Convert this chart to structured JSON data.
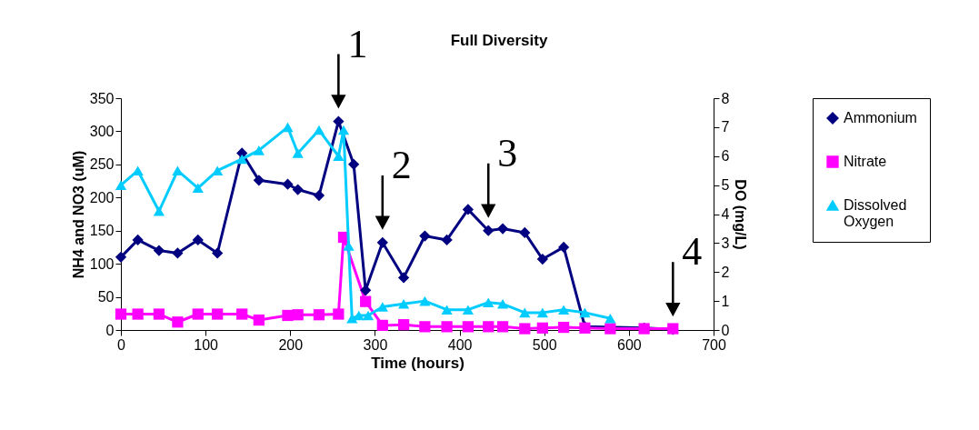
{
  "chart_data": {
    "type": "line",
    "title": "Full Diversity",
    "xlabel": "Time (hours)",
    "ylabel": "NH4 and NO3 (uM)",
    "y2label": "DO (mg/L)",
    "xlim": [
      0,
      700
    ],
    "xticks": [
      0,
      100,
      200,
      300,
      400,
      500,
      600,
      700
    ],
    "ylim": [
      0,
      350
    ],
    "yticks": [
      0,
      50,
      100,
      150,
      200,
      250,
      300,
      350
    ],
    "y2lim": [
      0,
      8
    ],
    "y2ticks": [
      0,
      1,
      2,
      3,
      4,
      5,
      6,
      7,
      8
    ],
    "grid": false,
    "legend": "right",
    "line_style": "solid",
    "series": [
      {
        "name": "Ammonium",
        "color": "#000080",
        "marker": "diamond",
        "x": [
          0,
          20,
          45,
          67,
          91,
          114,
          143,
          163,
          197,
          209,
          234,
          257,
          275,
          289,
          309,
          334,
          359,
          385,
          410,
          434,
          451,
          477,
          498,
          523,
          548,
          618,
          652
        ],
        "values": [
          110,
          136,
          120,
          116,
          136,
          116,
          267,
          226,
          220,
          212,
          203,
          315,
          250,
          60,
          132,
          79,
          142,
          136,
          182,
          150,
          153,
          147,
          107,
          125,
          5,
          3,
          1
        ]
      },
      {
        "name": "Nitrate",
        "color": "#ff00ff",
        "marker": "square",
        "x": [
          0,
          20,
          45,
          67,
          91,
          114,
          143,
          163,
          197,
          209,
          234,
          257,
          263,
          289,
          309,
          334,
          359,
          385,
          410,
          434,
          451,
          477,
          498,
          523,
          548,
          578,
          618,
          652
        ],
        "values": [
          24,
          24,
          24,
          12,
          24,
          24,
          24,
          15,
          22,
          23,
          23,
          24,
          140,
          43,
          7,
          8,
          5,
          5,
          5,
          5,
          5,
          2,
          3,
          4,
          3,
          2,
          2,
          2
        ]
      },
      {
        "name": "Dissolved Oxygen",
        "color": "#00ccff",
        "marker": "triangle",
        "axis": "y2",
        "x": [
          0,
          20,
          45,
          67,
          91,
          114,
          143,
          163,
          197,
          209,
          234,
          257,
          263,
          269,
          273,
          281,
          292,
          309,
          334,
          359,
          385,
          410,
          434,
          451,
          477,
          498,
          523,
          548,
          578
        ],
        "values": [
          5.0,
          5.5,
          4.1,
          5.5,
          4.9,
          5.5,
          5.9,
          6.2,
          7.0,
          6.1,
          6.9,
          6.0,
          6.9,
          2.9,
          0.4,
          0.5,
          0.5,
          0.8,
          0.9,
          1.0,
          0.7,
          0.7,
          0.95,
          0.9,
          0.6,
          0.6,
          0.7,
          0.6,
          0.4
        ]
      }
    ],
    "annotations": [
      {
        "text": "1",
        "x": 257,
        "y": 315
      },
      {
        "text": "2",
        "x": 309,
        "y": 132
      },
      {
        "text": "3",
        "x": 434,
        "y": 150
      },
      {
        "text": "4",
        "x": 652,
        "y": 1
      }
    ]
  }
}
